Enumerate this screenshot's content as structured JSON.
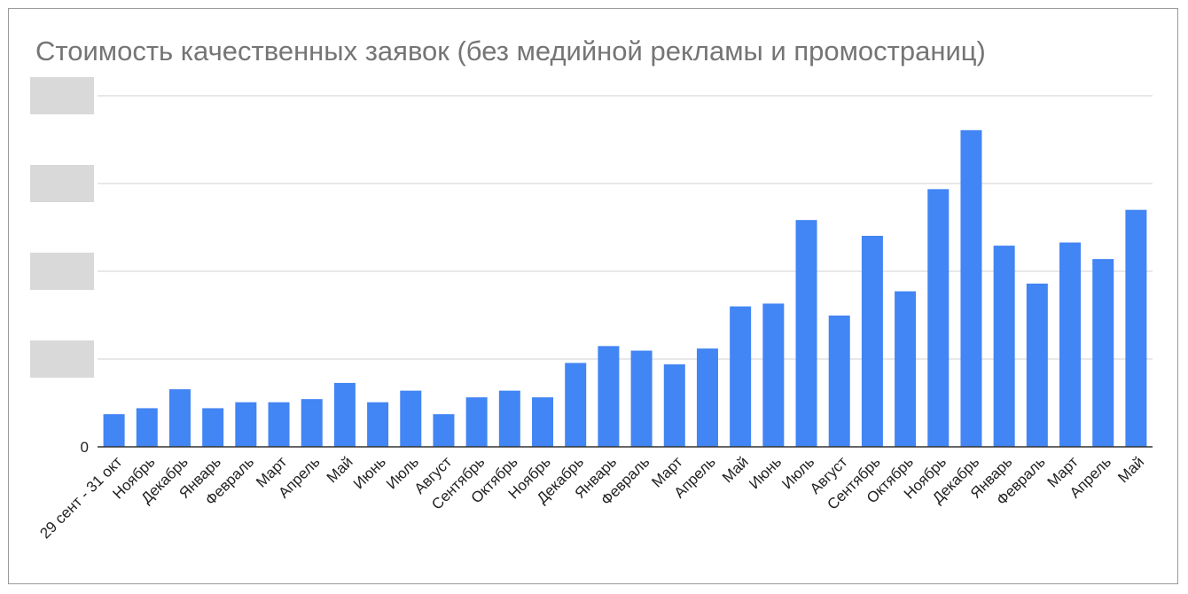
{
  "chart_data": {
    "type": "bar",
    "title": "Стоимость качественных заявок  (без медийной рекламы и промостраниц)",
    "xlabel": "",
    "ylabel": "",
    "y_tick_labels": [
      "0"
    ],
    "y_tick_labels_redacted": true,
    "gridlines": true,
    "legend": "none",
    "bar_color": "#4285f4",
    "grid_color": "#d0d0d0",
    "redaction_color": "#d9d9d9",
    "ylim": [
      0,
      100
    ],
    "categories": [
      "29 сент - 31 окт",
      "Ноябрь",
      "Декабрь",
      "Январь",
      "Февраль",
      "Март",
      "Апрель",
      "Май",
      "Июнь",
      "Июль",
      "Август",
      "Сентябрь",
      "Октябрь",
      "Ноябрь",
      "Декабрь",
      "Январь",
      "Февраль",
      "Март",
      "Апрель",
      "Май",
      "Июнь",
      "Июль",
      "Август",
      "Сентябрь",
      "Октябрь",
      "Ноябрь",
      "Декабрь",
      "Январь",
      "Февраль",
      "Март",
      "Апрель",
      "Май"
    ],
    "values": [
      9.3,
      11,
      16.4,
      11,
      12.7,
      12.7,
      13.6,
      18.2,
      12.7,
      16,
      9.3,
      14.1,
      16,
      14.1,
      23.9,
      28.7,
      27.4,
      23.5,
      28,
      40,
      40.8,
      64.6,
      37.4,
      60.1,
      44.3,
      73.4,
      90.2,
      57.3,
      46.5,
      58.2,
      53.5,
      67.5
    ]
  }
}
